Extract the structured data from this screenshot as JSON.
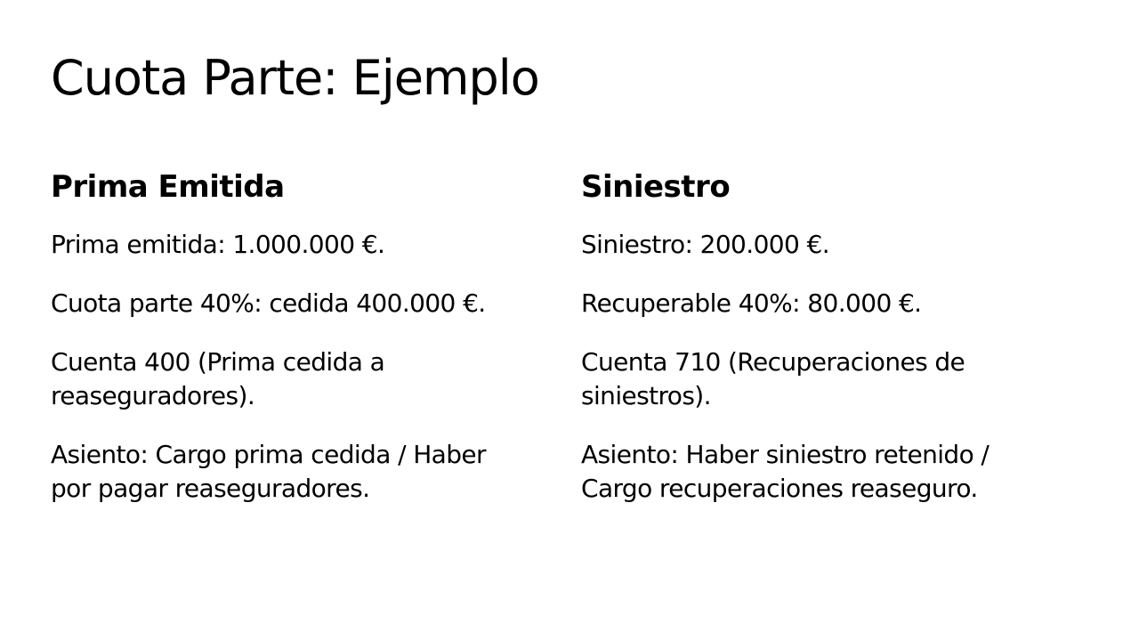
{
  "title": "Cuota Parte: Ejemplo",
  "left": {
    "heading": "Prima Emitida",
    "items": [
      "Prima emitida: 1.000.000 €.",
      "Cuota parte 40%: cedida 400.000 €.",
      "Cuenta 400 (Prima cedida a reaseguradores).",
      "Asiento: Cargo prima cedida / Haber por pagar reaseguradores."
    ]
  },
  "right": {
    "heading": "Siniestro",
    "items": [
      "Siniestro: 200.000 €.",
      "Recuperable 40%: 80.000 €.",
      "Cuenta 710 (Recuperaciones de siniestros).",
      "Asiento: Haber siniestro retenido / Cargo recuperaciones reaseguro."
    ]
  }
}
